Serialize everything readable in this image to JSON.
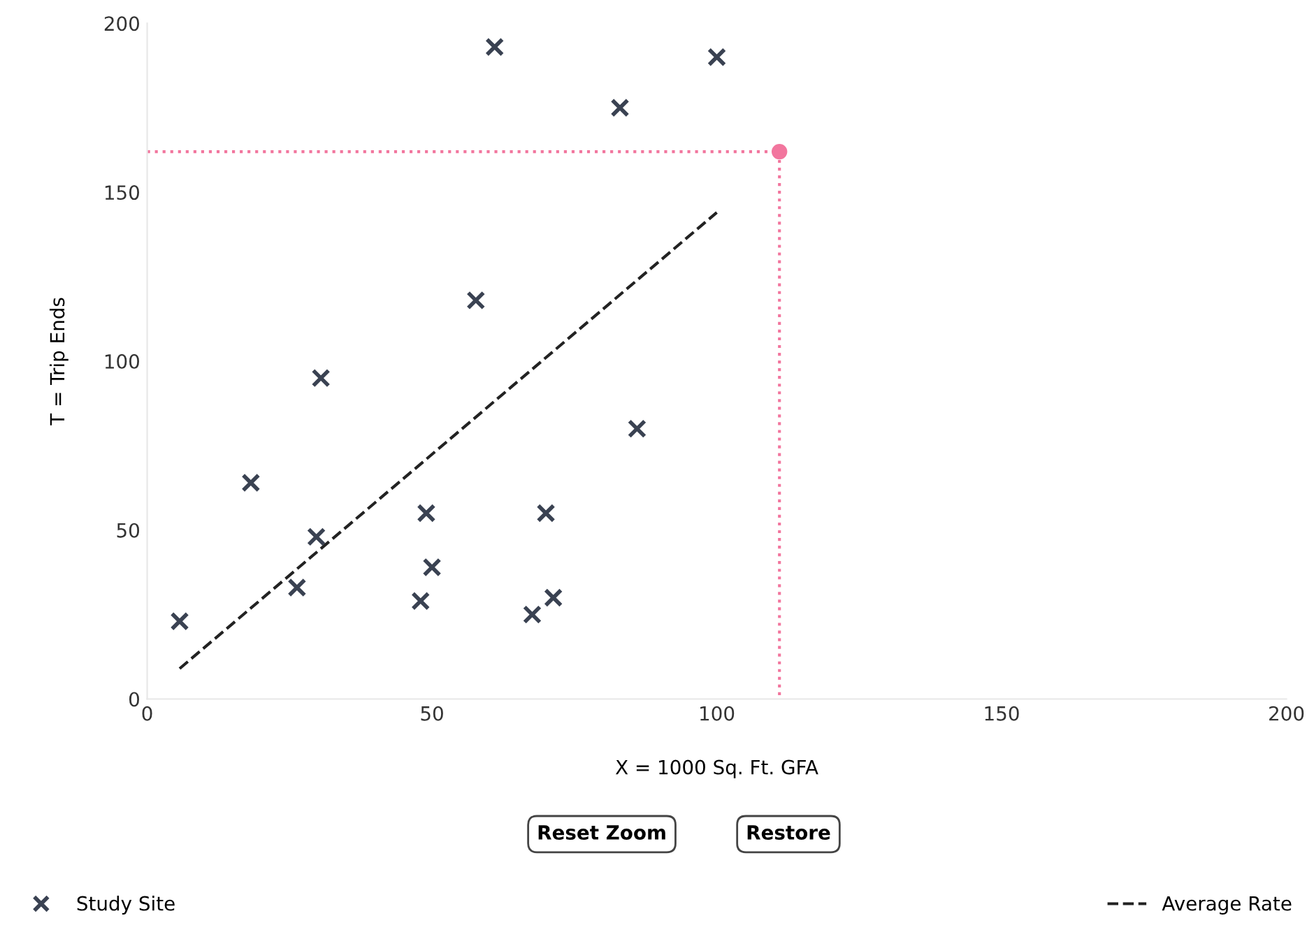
{
  "chart_data": {
    "type": "scatter",
    "xlabel": "X = 1000 Sq. Ft. GFA",
    "ylabel": "T = Trip Ends",
    "xlim": [
      0,
      200
    ],
    "ylim": [
      0,
      200
    ],
    "xticks": [
      0,
      50,
      100,
      150,
      200
    ],
    "yticks": [
      0,
      50,
      100,
      150,
      200
    ],
    "grid": false,
    "legend": "bottom",
    "series": [
      {
        "name": "Study Site",
        "marker": "cross",
        "color": "#3a4252",
        "x": [
          5.7,
          18.2,
          30.5,
          29.7,
          26.3,
          49,
          50,
          48,
          57.7,
          61,
          70,
          67.6,
          71.3,
          83,
          86,
          100
        ],
        "values": [
          23,
          64,
          95,
          48,
          33,
          55,
          39,
          29,
          118,
          193,
          55,
          25,
          30,
          175,
          80,
          190
        ]
      },
      {
        "name": "Average Rate",
        "type": "line",
        "marker": "none",
        "line_style": "dashed",
        "color": "#222222",
        "x": [
          5.7,
          100
        ],
        "values": [
          9,
          144
        ]
      },
      {
        "type": "line",
        "marker": "none",
        "line_style": "dotted",
        "color": "#f2769e",
        "x": [
          0,
          111,
          111
        ],
        "values": [
          162,
          162,
          0
        ]
      },
      {
        "marker": "circle",
        "color": "#f2769e",
        "x": [
          111
        ],
        "values": [
          162
        ]
      }
    ],
    "annotations": [
      "Reset Zoom",
      "Restore"
    ]
  }
}
